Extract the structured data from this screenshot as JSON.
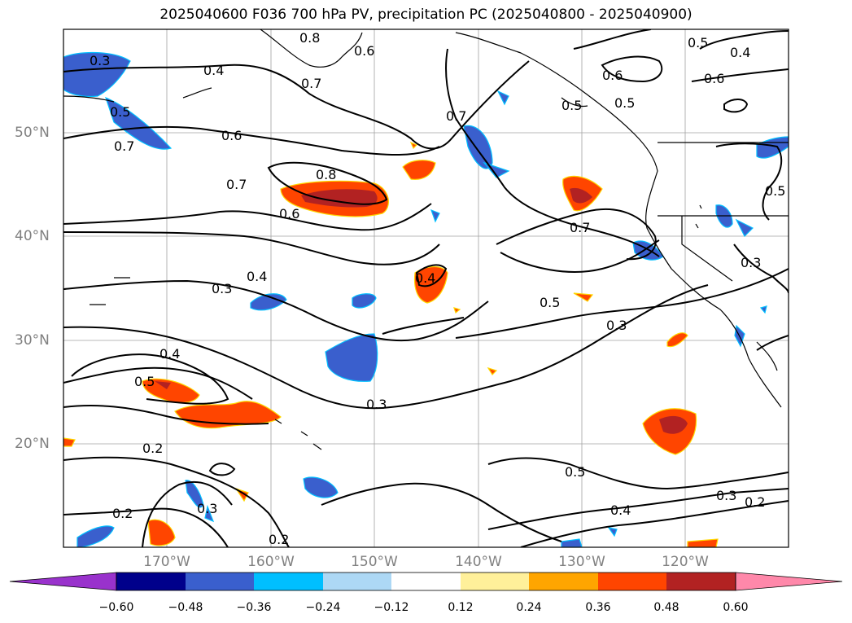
{
  "title": "2025040600 F036 700 hPa PV, precipitation PC (2025040800 - 2025040900)",
  "map": {
    "lat_labels": [
      "50°N",
      "40°N",
      "30°N",
      "20°N"
    ],
    "lon_labels": [
      "170°W",
      "160°W",
      "150°W",
      "140°W",
      "130°W",
      "120°W"
    ],
    "contour_labels": [
      "0.4",
      "0.7",
      "0.8",
      "0.6",
      "0.5",
      "0.7",
      "0.6",
      "0.8",
      "0.7",
      "0.6",
      "0.4",
      "0.3",
      "0.4",
      "0.5",
      "0.3",
      "0.4",
      "0.5",
      "0.3",
      "0.2",
      "0.2",
      "0.3",
      "0.2",
      "0.5",
      "0.4",
      "0.3",
      "0.2",
      "0.7",
      "0.5",
      "0.5",
      "0.6",
      "0.4",
      "0.6",
      "0.5",
      "0.3",
      "0.5",
      "0.3",
      "0.7"
    ],
    "colors": {
      "blue_dark": "#3a5fcd",
      "blue_edge": "#00bfff",
      "orange": "#ff4500",
      "dark_red": "#b22222",
      "yellow_edge": "#ffd700",
      "grid": "#a0a0a0"
    }
  },
  "colorbar": {
    "ticks": [
      "−0.60",
      "−0.48",
      "−0.36",
      "−0.24",
      "−0.12",
      "0.12",
      "0.24",
      "0.36",
      "0.48",
      "0.60"
    ],
    "colors": [
      "#9932cc",
      "#00008b",
      "#3a5fcd",
      "#00bfff",
      "#add8f5",
      "#ffffff",
      "#fff09a",
      "#ffa500",
      "#ff4500",
      "#b22222",
      "#ff88aa"
    ]
  }
}
